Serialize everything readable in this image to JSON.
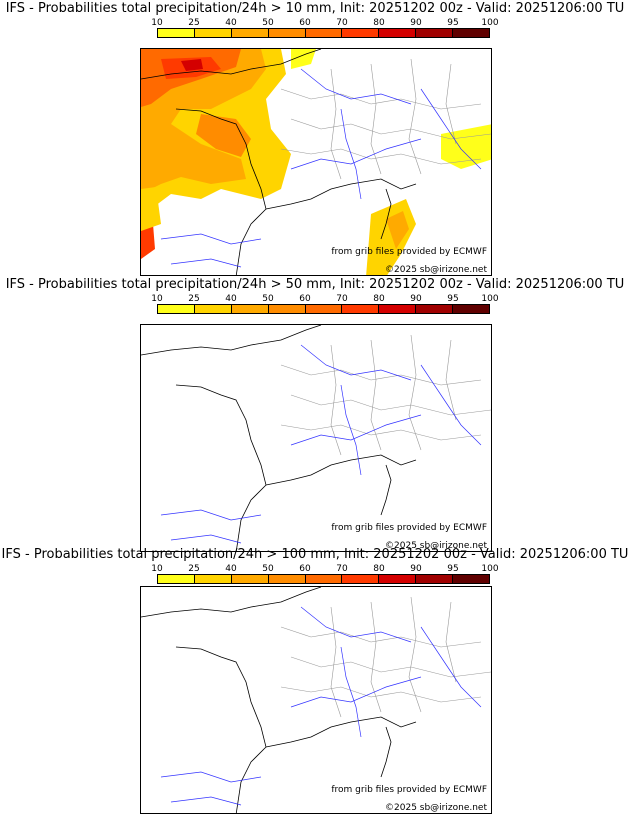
{
  "colorbar": {
    "ticks": [
      "10",
      "25",
      "40",
      "50",
      "60",
      "70",
      "80",
      "90",
      "95",
      "100"
    ],
    "colors": [
      "#ffff1a",
      "#ffd400",
      "#ffaa00",
      "#ff8c00",
      "#ff6a00",
      "#ff3a00",
      "#d40000",
      "#a00000",
      "#600000"
    ]
  },
  "panels": [
    {
      "title": "IFS - Probabilities total precipitation/24h > 10 mm, Init: 20251202 00z - Valid: 20251206:00 TU"
    },
    {
      "title": "IFS - Probabilities total precipitation/24h > 50 mm, Init: 20251202 00z - Valid: 20251206:00 TU"
    },
    {
      "title": "IFS - Probabilities total precipitation/24h > 100 mm, Init: 20251202 00z - Valid: 20251206:00 TU"
    }
  ],
  "credits": {
    "source": "from grib files provided by ECMWF",
    "copyright": "©2025 sb@irizone.net"
  }
}
